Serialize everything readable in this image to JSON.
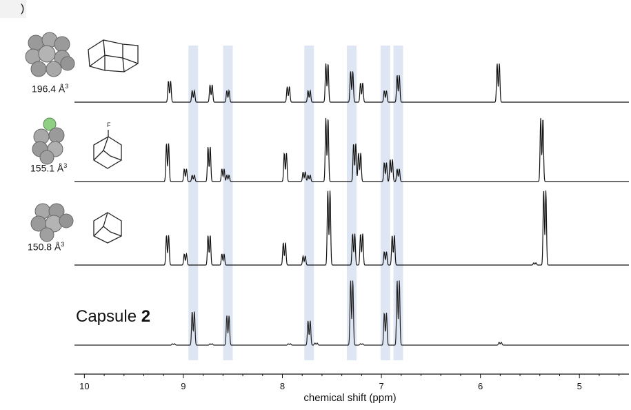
{
  "panel_label": ")",
  "molecules": [
    {
      "volume": "196.4 Å",
      "sup": "3"
    },
    {
      "volume": "155.1 Å",
      "sup": "3",
      "atom_label": "F"
    },
    {
      "volume": "150.8 Å",
      "sup": "3"
    }
  ],
  "capsule": {
    "text": "Capsule ",
    "bold": "2"
  },
  "colors": {
    "highlight": "#dfe6f3",
    "trace": "#111111",
    "capsule_trace": "#222222",
    "fluorine": "#8fcf84",
    "sphere": "#9a9a9a"
  },
  "chart_data": {
    "type": "line",
    "xlabel": "chemical shift (ppm)",
    "xlim": [
      10.1,
      4.5
    ],
    "xticks": [
      10,
      9,
      8,
      7,
      6,
      5
    ],
    "highlight_bands_ppm": [
      8.9,
      8.55,
      7.73,
      7.3,
      6.96,
      6.83
    ],
    "series": [
      {
        "peaks": [
          [
            9.14,
            0.55
          ],
          [
            8.9,
            0.3
          ],
          [
            8.72,
            0.45
          ],
          [
            8.55,
            0.3
          ],
          [
            7.94,
            0.4
          ],
          [
            7.73,
            0.3
          ],
          [
            7.55,
            1.0
          ],
          [
            7.3,
            0.8
          ],
          [
            7.2,
            0.5
          ],
          [
            6.96,
            0.3
          ],
          [
            6.83,
            0.7
          ],
          [
            5.82,
            1.0
          ]
        ]
      },
      {
        "peaks": [
          [
            9.16,
            0.6
          ],
          [
            8.98,
            0.2
          ],
          [
            8.9,
            0.1
          ],
          [
            8.74,
            0.55
          ],
          [
            8.6,
            0.2
          ],
          [
            8.55,
            0.1
          ],
          [
            7.97,
            0.45
          ],
          [
            7.78,
            0.15
          ],
          [
            7.73,
            0.1
          ],
          [
            7.55,
            1.0
          ],
          [
            7.27,
            0.6
          ],
          [
            7.22,
            0.45
          ],
          [
            6.96,
            0.3
          ],
          [
            6.9,
            0.35
          ],
          [
            6.83,
            0.2
          ],
          [
            5.38,
            1.0
          ]
        ]
      },
      {
        "peaks": [
          [
            9.16,
            0.4
          ],
          [
            8.98,
            0.15
          ],
          [
            8.74,
            0.4
          ],
          [
            8.6,
            0.15
          ],
          [
            7.98,
            0.3
          ],
          [
            7.78,
            0.12
          ],
          [
            7.53,
            1.0
          ],
          [
            7.28,
            0.42
          ],
          [
            7.2,
            0.42
          ],
          [
            6.96,
            0.18
          ],
          [
            6.88,
            0.4
          ],
          [
            5.45,
            0.03
          ],
          [
            5.35,
            1.0
          ]
        ]
      },
      {
        "peaks": [
          [
            9.1,
            0.02
          ],
          [
            8.9,
            0.48
          ],
          [
            8.72,
            0.02
          ],
          [
            8.55,
            0.42
          ],
          [
            7.93,
            0.02
          ],
          [
            7.73,
            0.35
          ],
          [
            7.66,
            0.03
          ],
          [
            7.3,
            0.92
          ],
          [
            7.2,
            0.02
          ],
          [
            6.96,
            0.46
          ],
          [
            6.83,
            0.92
          ],
          [
            5.8,
            0.04
          ]
        ]
      }
    ]
  }
}
